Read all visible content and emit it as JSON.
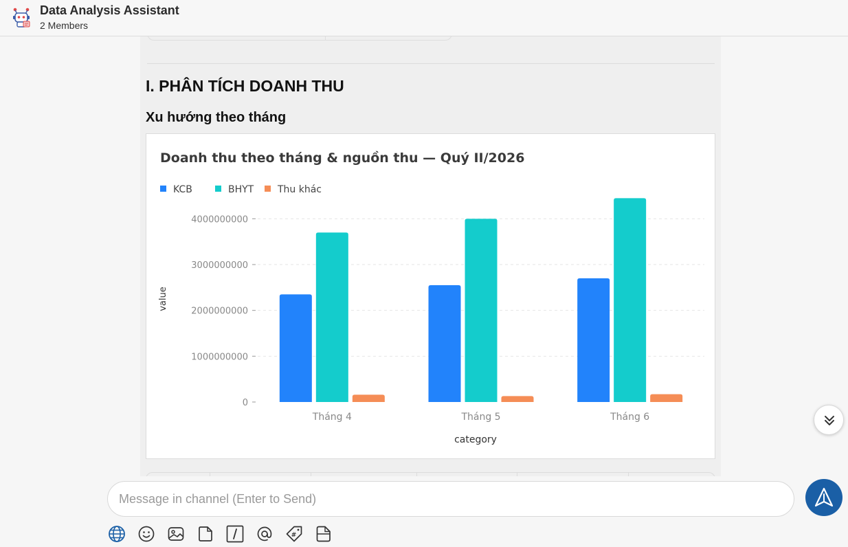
{
  "header": {
    "title": "Data Analysis Assistant",
    "members": "2 Members"
  },
  "message": {
    "heading": "I. PHÂN TÍCH DOANH THU",
    "subheading": "Xu hướng theo tháng"
  },
  "chart_data": {
    "type": "bar",
    "title": "Doanh thu theo tháng & nguồn thu — Quý II/2026",
    "xlabel": "category",
    "ylabel": "value",
    "categories": [
      "Tháng 4",
      "Tháng 5",
      "Tháng 6"
    ],
    "series": [
      {
        "name": "KCB",
        "color": "#2283fb",
        "values": [
          2350000000,
          2550000000,
          2700000000
        ]
      },
      {
        "name": "BHYT",
        "color": "#14cccc",
        "values": [
          3700000000,
          4000000000,
          4450000000
        ]
      },
      {
        "name": "Thu khác",
        "color": "#f58d56",
        "values": [
          160000000,
          130000000,
          170000000
        ]
      }
    ],
    "yticks": [
      "0",
      "1000000000",
      "2000000000",
      "3000000000",
      "4000000000"
    ],
    "ylim": [
      0,
      4500000000
    ],
    "legend": "top-left",
    "grid": true
  },
  "composer": {
    "placeholder": "Message in channel (Enter to Send)"
  },
  "toolbar": {
    "icons": [
      "globe-icon",
      "emoji-icon",
      "image-icon",
      "file-icon",
      "slash-command-icon",
      "mention-icon",
      "tag-icon",
      "document-icon"
    ]
  },
  "colors": {
    "send_button": "#1a5fa6",
    "globe_icon": "#1a5fa6"
  }
}
